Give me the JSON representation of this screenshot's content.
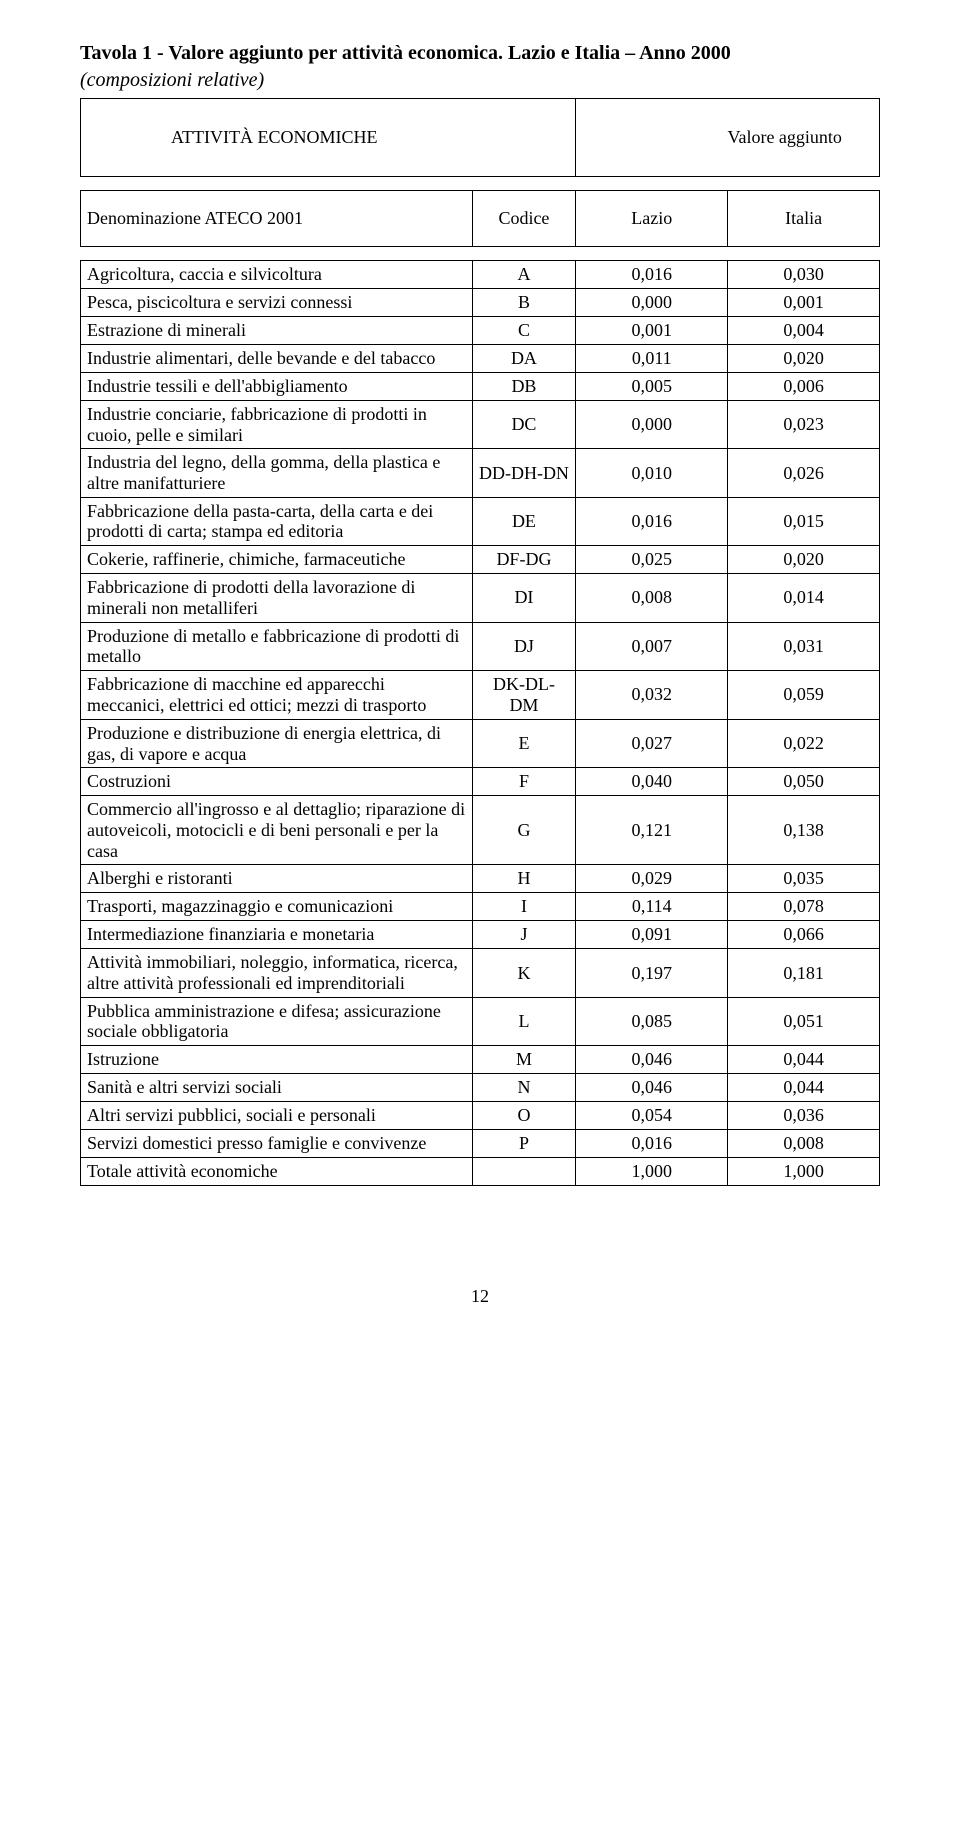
{
  "caption_line1": "Tavola 1 - Valore aggiunto per attività economica. Lazio e Italia – Anno 2000",
  "caption_line2": "(composizioni relative)",
  "outer_header": {
    "left": "ATTIVITÀ ECONOMICHE",
    "right": "Valore aggiunto"
  },
  "columns": [
    "Denominazione ATECO 2001",
    "Codice",
    "Lazio",
    "Italia"
  ],
  "rows": [
    {
      "name": "Agricoltura, caccia e silvicoltura",
      "code": "A",
      "lazio": "0,016",
      "italia": "0,030"
    },
    {
      "name": "Pesca, piscicoltura e servizi connessi",
      "code": "B",
      "lazio": "0,000",
      "italia": "0,001"
    },
    {
      "name": "Estrazione di minerali",
      "code": "C",
      "lazio": "0,001",
      "italia": "0,004"
    },
    {
      "name": "Industrie alimentari, delle bevande e del tabacco",
      "code": "DA",
      "lazio": "0,011",
      "italia": "0,020"
    },
    {
      "name": "Industrie tessili e dell'abbigliamento",
      "code": "DB",
      "lazio": "0,005",
      "italia": "0,006"
    },
    {
      "name": "Industrie conciarie, fabbricazione di prodotti in cuoio, pelle e similari",
      "code": "DC",
      "lazio": "0,000",
      "italia": "0,023"
    },
    {
      "name": "Industria del legno, della gomma, della plastica e altre manifatturiere",
      "code": "DD-DH-DN",
      "lazio": "0,010",
      "italia": "0,026"
    },
    {
      "name": "Fabbricazione della pasta-carta, della carta e dei prodotti di carta; stampa ed editoria",
      "code": "DE",
      "lazio": "0,016",
      "italia": "0,015"
    },
    {
      "name": "Cokerie, raffinerie, chimiche, farmaceutiche",
      "code": "DF-DG",
      "lazio": "0,025",
      "italia": "0,020"
    },
    {
      "name": "Fabbricazione di prodotti della lavorazione di minerali non metalliferi",
      "code": "DI",
      "lazio": "0,008",
      "italia": "0,014"
    },
    {
      "name": "Produzione di metallo e fabbricazione di prodotti di metallo",
      "code": "DJ",
      "lazio": "0,007",
      "italia": "0,031"
    },
    {
      "name": "Fabbricazione di macchine ed apparecchi meccanici, elettrici ed ottici; mezzi di trasporto",
      "code": "DK-DL-DM",
      "lazio": "0,032",
      "italia": "0,059"
    },
    {
      "name": "Produzione e distribuzione di energia elettrica, di gas, di vapore e acqua",
      "code": "E",
      "lazio": "0,027",
      "italia": "0,022"
    },
    {
      "name": "Costruzioni",
      "code": "F",
      "lazio": "0,040",
      "italia": "0,050"
    },
    {
      "name": "Commercio all'ingrosso e al dettaglio; riparazione di autoveicoli, motocicli e di beni personali e per la casa",
      "code": "G",
      "lazio": "0,121",
      "italia": "0,138"
    },
    {
      "name": "Alberghi e ristoranti",
      "code": "H",
      "lazio": "0,029",
      "italia": "0,035"
    },
    {
      "name": "Trasporti, magazzinaggio e comunicazioni",
      "code": "I",
      "lazio": "0,114",
      "italia": "0,078"
    },
    {
      "name": "Intermediazione finanziaria e monetaria",
      "code": "J",
      "lazio": "0,091",
      "italia": "0,066"
    },
    {
      "name": "Attività immobiliari, noleggio, informatica, ricerca, altre attività professionali ed imprenditoriali",
      "code": "K",
      "lazio": "0,197",
      "italia": "0,181"
    },
    {
      "name": "Pubblica amministrazione e difesa; assicurazione sociale obbligatoria",
      "code": "L",
      "lazio": "0,085",
      "italia": "0,051"
    },
    {
      "name": "Istruzione",
      "code": "M",
      "lazio": "0,046",
      "italia": "0,044"
    },
    {
      "name": "Sanità e altri servizi sociali",
      "code": "N",
      "lazio": "0,046",
      "italia": "0,044"
    },
    {
      "name": "Altri servizi pubblici, sociali e personali",
      "code": "O",
      "lazio": "0,054",
      "italia": "0,036"
    },
    {
      "name": "Servizi domestici presso famiglie e convivenze",
      "code": "P",
      "lazio": "0,016",
      "italia": "0,008"
    },
    {
      "name": "Totale attività economiche",
      "code": "",
      "lazio": "1,000",
      "italia": "1,000"
    }
  ],
  "page_number": "12"
}
